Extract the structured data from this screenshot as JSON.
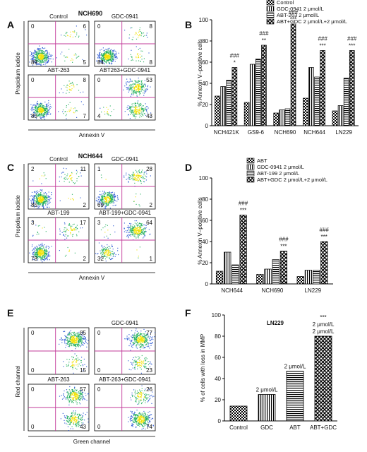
{
  "panel_letters": [
    "A",
    "B",
    "C",
    "D",
    "E",
    "F"
  ],
  "headers": {
    "A": "NCH690",
    "C": "NCH644"
  },
  "flow_panels": [
    {
      "panel": "A",
      "ylabel": "Propidium iodide",
      "xlabel": "Annexin V",
      "plots": [
        {
          "title": "Control",
          "ul": "0",
          "ur": "6",
          "ll": "89",
          "lr": "5"
        },
        {
          "title": "GDC-0941",
          "ul": "0",
          "ur": "8",
          "ll": "84",
          "lr": "8"
        },
        {
          "title": "ABT-263",
          "ul": "0",
          "ur": "8",
          "ll": "85",
          "lr": "7"
        },
        {
          "title": "ABT263+GDC-0941",
          "ul": "0",
          "ur": "53",
          "ll": "4",
          "lr": "43"
        }
      ]
    },
    {
      "panel": "C",
      "ylabel": "Propidium iodide",
      "xlabel": "Annexin V",
      "plots": [
        {
          "title": "Control",
          "ul": "2",
          "ur": "11",
          "ll": "85",
          "lr": "2"
        },
        {
          "title": "GDC-0941",
          "ul": "1",
          "ur": "28",
          "ll": "69",
          "lr": "2"
        },
        {
          "title": "ABT-199",
          "ul": "3",
          "ur": "17",
          "ll": "78",
          "lr": "2"
        },
        {
          "title": "ABT-199+GDC-0941",
          "ul": "3",
          "ur": "64",
          "ll": "32",
          "lr": "1"
        }
      ]
    },
    {
      "panel": "E",
      "ylabel": "Red channel",
      "xlabel": "Green channel",
      "plots": [
        {
          "title": "",
          "ul": "0",
          "ur": "85",
          "ll": "0",
          "lr": "15"
        },
        {
          "title": "GDC-0941",
          "ul": "0",
          "ur": "77",
          "ll": "0",
          "lr": "23"
        },
        {
          "title": "ABT-263",
          "ul": "0",
          "ur": "57",
          "ll": "0",
          "lr": "43"
        },
        {
          "title": "ABT-263+GDC-0941",
          "ul": "0",
          "ur": "26",
          "ll": "0",
          "lr": "74"
        }
      ]
    }
  ],
  "chart_data": [
    {
      "panel": "B",
      "type": "bar",
      "ylabel": "% Annexin V–positive cells",
      "ylim": [
        0,
        100
      ],
      "yticks": [
        "0",
        "20",
        "40",
        "60",
        "80",
        "100"
      ],
      "categories": [
        "NCH421K",
        "GS9-6",
        "NCH690",
        "NCH644",
        "LN229"
      ],
      "legend": "top-right",
      "series": [
        {
          "name": "Control",
          "pattern": "checker",
          "values": [
            28,
            22,
            12,
            26,
            14
          ]
        },
        {
          "name": "GDC-0941 2 μmol/L",
          "pattern": "vlines",
          "values": [
            37,
            58,
            15,
            55,
            19
          ]
        },
        {
          "name": "ABT-263   2 μmol/L",
          "pattern": "hlines",
          "values": [
            43,
            63,
            16,
            46,
            45
          ]
        },
        {
          "name": "ABT+GDC 2 μmol/L+2 μmol/L",
          "pattern": "cross",
          "values": [
            55,
            76,
            96,
            71,
            71
          ]
        }
      ],
      "annotations": [
        {
          "category": 0,
          "lines": [
            "###",
            "*"
          ]
        },
        {
          "category": 1,
          "lines": [
            "###",
            "**"
          ]
        },
        {
          "category": 2,
          "lines": [
            "###",
            "***"
          ]
        },
        {
          "category": 3,
          "lines": [
            "###",
            "***"
          ]
        },
        {
          "category": 4,
          "lines": [
            "###",
            "***"
          ]
        }
      ]
    },
    {
      "panel": "D",
      "type": "bar",
      "ylabel": "% Annexin V–positive cells",
      "ylim": [
        0,
        100
      ],
      "yticks": [
        "0",
        "20",
        "40",
        "60",
        "80",
        "100"
      ],
      "categories": [
        "NCH644",
        "NCH690",
        "LN229"
      ],
      "legend": "top-right",
      "series": [
        {
          "name": "ABT",
          "pattern": "checker",
          "values": [
            12,
            9,
            7
          ]
        },
        {
          "name": "GDC-0941 2 μmol/L",
          "pattern": "vlines",
          "values": [
            30,
            14,
            13
          ]
        },
        {
          "name": "ABT-199   2 μmol/L",
          "pattern": "hlines",
          "values": [
            18,
            23,
            13
          ]
        },
        {
          "name": "ABT+GDC 2 μmol/L+2 μmol/L",
          "pattern": "cross",
          "values": [
            65,
            31,
            40
          ]
        }
      ],
      "annotations": [
        {
          "category": 0,
          "lines": [
            "###",
            "***"
          ]
        },
        {
          "category": 1,
          "lines": [
            "###",
            "***"
          ]
        },
        {
          "category": 2,
          "lines": [
            "###",
            "***"
          ]
        }
      ]
    },
    {
      "panel": "F",
      "type": "bar",
      "title": "LN229",
      "ylabel": "% of cells with loss in MMP",
      "ylim": [
        0,
        100
      ],
      "yticks": [
        "0",
        "20",
        "40",
        "60",
        "80",
        "100"
      ],
      "categories": [
        "Control",
        "GDC",
        "ABT",
        "ABT+GDC"
      ],
      "series": [
        {
          "name": "",
          "patterns": [
            "checker",
            "vlines",
            "hlines",
            "cross"
          ],
          "values": [
            14,
            25,
            47,
            80
          ]
        }
      ],
      "annotations": [
        {
          "category": 1,
          "lines": [
            "2 μmol/L"
          ]
        },
        {
          "category": 2,
          "lines": [
            "2 μmol/L"
          ]
        },
        {
          "category": 3,
          "lines": [
            "***",
            "2 μmol/L",
            "2 μmol/L"
          ]
        }
      ]
    }
  ],
  "colors": {
    "gate": "#c23b9a",
    "axis": "#000000",
    "density_low": "#1f4fd1",
    "density_mid": "#1fae5a",
    "density_high": "#f2e200"
  }
}
